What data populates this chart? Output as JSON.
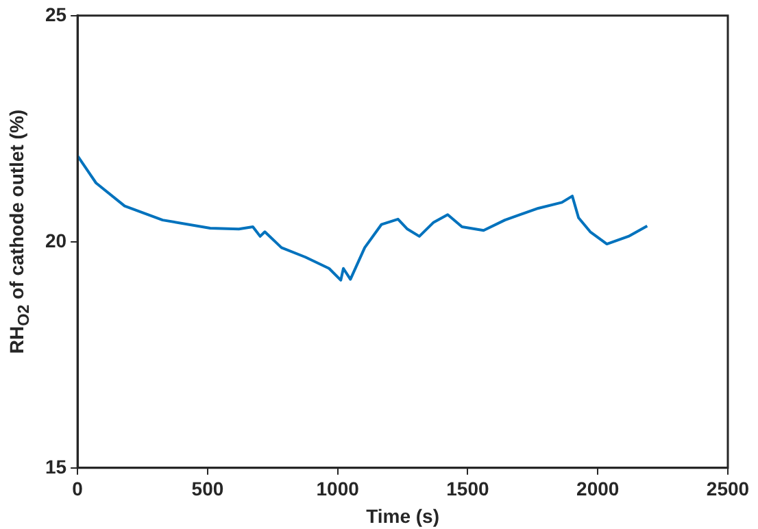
{
  "chart_data": {
    "type": "line",
    "xlabel": "Time (s)",
    "ylabel": "RH$_{O2}$ of cathode outlet (%)",
    "x": [
      0,
      71,
      181,
      327,
      510,
      620,
      674,
      702,
      720,
      784,
      876,
      967,
      1012,
      1022,
      1049,
      1104,
      1168,
      1232,
      1268,
      1314,
      1369,
      1423,
      1478,
      1561,
      1643,
      1771,
      1862,
      1902,
      1926,
      1971,
      2035,
      2118,
      2190
    ],
    "series": [
      {
        "color": "#0072bd",
        "values": [
          21.9,
          21.3,
          20.79,
          20.48,
          20.3,
          20.28,
          20.33,
          20.12,
          20.22,
          19.87,
          19.66,
          19.41,
          19.15,
          19.41,
          19.17,
          19.87,
          20.38,
          20.5,
          20.28,
          20.12,
          20.43,
          20.6,
          20.33,
          20.25,
          20.48,
          20.74,
          20.87,
          21.01,
          20.53,
          20.22,
          19.95,
          20.12,
          20.35
        ]
      }
    ],
    "xlim": [
      0,
      2500
    ],
    "xticks": [
      0,
      500,
      1000,
      1500,
      2000,
      2500
    ],
    "ylim": [
      15,
      25
    ],
    "yticks": [
      15,
      20,
      25
    ],
    "grid": false,
    "legend": false,
    "marker": "none",
    "line_style": "solid"
  }
}
